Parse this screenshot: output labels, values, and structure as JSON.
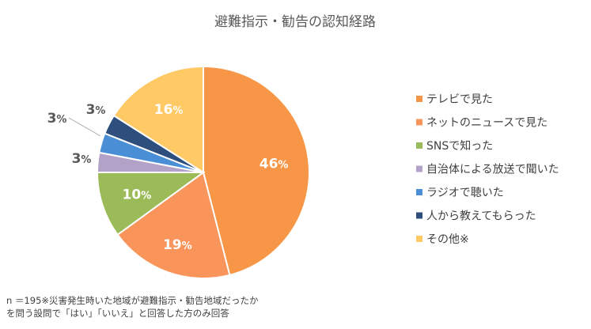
{
  "chart_data": {
    "type": "pie",
    "title": "避難指示・勧告の認知経路",
    "categories": [
      "テレビで見た",
      "ネットのニュースで見た",
      "SNSで知った",
      "自治体による放送で聞いた",
      "ラジオで聴いた",
      "人から教えてもらった",
      "その他※"
    ],
    "values": [
      46,
      19,
      10,
      3,
      3,
      3,
      16
    ],
    "labels": [
      "46%",
      "19%",
      "10%",
      "3%",
      "3%",
      "3%",
      "16%"
    ],
    "colors": [
      "#F79646",
      "#F9955A",
      "#9BBB59",
      "#B3A2C7",
      "#4A8ED6",
      "#2E4F7E",
      "#FFC966"
    ],
    "legend_position": "right"
  },
  "footnote": {
    "line1": "n ＝195※災害発生時いた地域が避難指示・勧告地域だったか",
    "line2": "を問う設問で「はい」「いいえ」と回答した方のみ回答"
  }
}
